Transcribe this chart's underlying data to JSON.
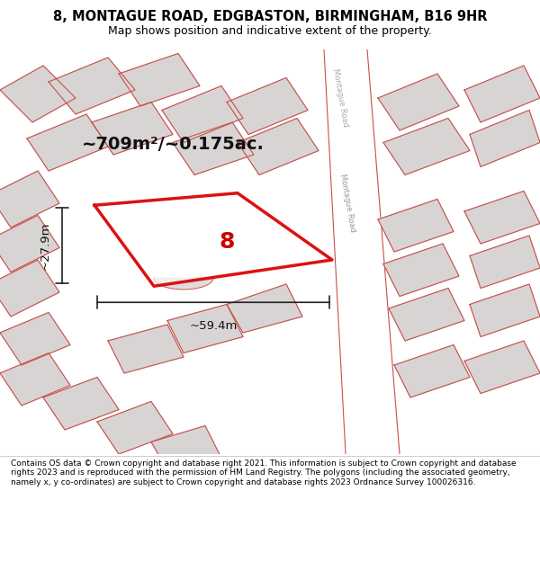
{
  "title_line1": "8, MONTAGUE ROAD, EDGBASTON, BIRMINGHAM, B16 9HR",
  "title_line2": "Map shows position and indicative extent of the property.",
  "area_text": "~709m²/~0.175ac.",
  "width_label": "~59.4m",
  "height_label": "~27.9m",
  "property_number": "8",
  "road_label": "Montague Road",
  "footer_text": "Contains OS data © Crown copyright and database right 2021. This information is subject to Crown copyright and database rights 2023 and is reproduced with the permission of HM Land Registry. The polygons (including the associated geometry, namely x, y co-ordinates) are subject to Crown copyright and database rights 2023 Ordnance Survey 100026316.",
  "bg_color": "#f0eeee",
  "map_bg": "#f2f0f0",
  "building_fill": "#d8d4d4",
  "building_edge": "#c8504a",
  "highlight_fill": "#ffffff",
  "highlight_edge": "#dd1111",
  "road_fill": "#ffffff",
  "road_edge": "#c8504a",
  "dim_line_color": "#222222",
  "title_bg": "#ffffff",
  "footer_bg": "#ffffff"
}
